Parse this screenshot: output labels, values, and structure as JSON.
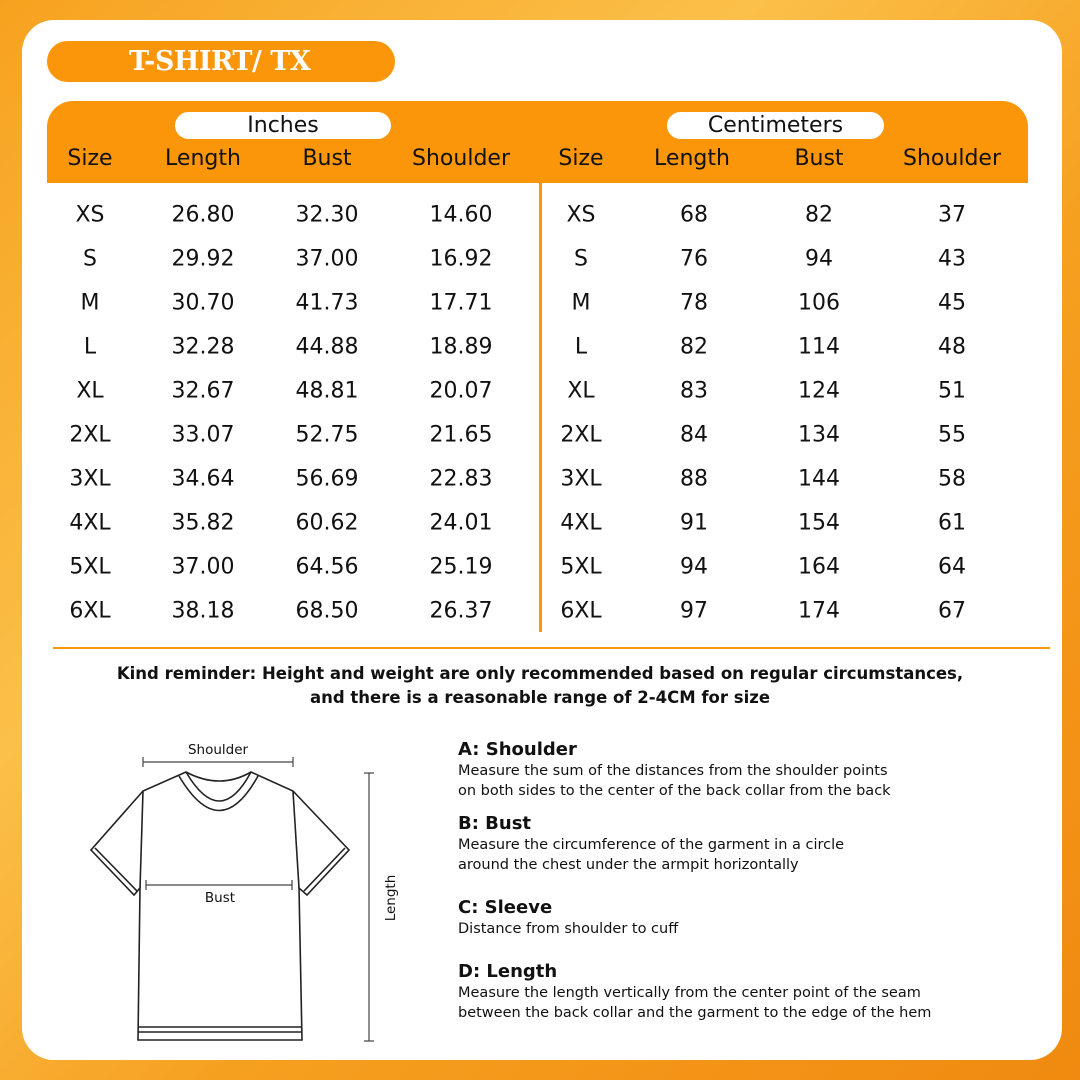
{
  "title": "T-SHIRT/ TX",
  "units": {
    "inches": "Inches",
    "centimeters": "Centimeters"
  },
  "columns": [
    "Size",
    "Length",
    "Bust",
    "Shoulder"
  ],
  "rows": [
    {
      "size": "XS",
      "in": [
        "26.80",
        "32.30",
        "14.60"
      ],
      "cm": [
        "68",
        "82",
        "37"
      ]
    },
    {
      "size": "S",
      "in": [
        "29.92",
        "37.00",
        "16.92"
      ],
      "cm": [
        "76",
        "94",
        "43"
      ]
    },
    {
      "size": "M",
      "in": [
        "30.70",
        "41.73",
        "17.71"
      ],
      "cm": [
        "78",
        "106",
        "45"
      ]
    },
    {
      "size": "L",
      "in": [
        "32.28",
        "44.88",
        "18.89"
      ],
      "cm": [
        "82",
        "114",
        "48"
      ]
    },
    {
      "size": "XL",
      "in": [
        "32.67",
        "48.81",
        "20.07"
      ],
      "cm": [
        "83",
        "124",
        "51"
      ]
    },
    {
      "size": "2XL",
      "in": [
        "33.07",
        "52.75",
        "21.65"
      ],
      "cm": [
        "84",
        "134",
        "55"
      ]
    },
    {
      "size": "3XL",
      "in": [
        "34.64",
        "56.69",
        "22.83"
      ],
      "cm": [
        "88",
        "144",
        "58"
      ]
    },
    {
      "size": "4XL",
      "in": [
        "35.82",
        "60.62",
        "24.01"
      ],
      "cm": [
        "91",
        "154",
        "61"
      ]
    },
    {
      "size": "5XL",
      "in": [
        "37.00",
        "64.56",
        "25.19"
      ],
      "cm": [
        "94",
        "164",
        "64"
      ]
    },
    {
      "size": "6XL",
      "in": [
        "38.18",
        "68.50",
        "26.37"
      ],
      "cm": [
        "97",
        "174",
        "67"
      ]
    }
  ],
  "reminder": {
    "line1": "Kind reminder: Height and weight are only recommended based on regular circumstances,",
    "line2": "and there is a reasonable range of 2-4CM for size"
  },
  "diagram": {
    "shoulder": "Shoulder",
    "bust": "Bust",
    "length": "Length"
  },
  "definitions": [
    {
      "title": "A: Shoulder",
      "lines": [
        "Measure the sum of the distances from the shoulder points",
        "on both sides to the center of the back collar from the back"
      ]
    },
    {
      "title": "B: Bust",
      "lines": [
        "Measure the circumference of the garment in a circle",
        "around the chest under the armpit horizontally"
      ]
    },
    {
      "title": "C: Sleeve",
      "lines": [
        "Distance from shoulder to cuff"
      ]
    },
    {
      "title": "D: Length",
      "lines": [
        "Measure the length vertically from the center point of the seam",
        "between the back collar and the garment to the edge of the hem"
      ]
    }
  ],
  "colors": {
    "accent": "#fb960a"
  }
}
